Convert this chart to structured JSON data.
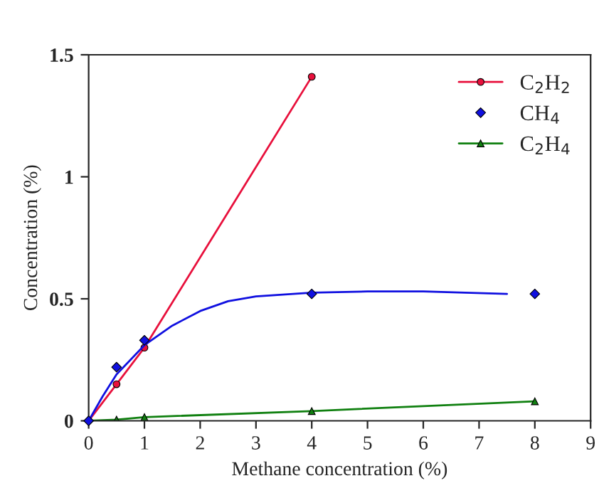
{
  "chart_data": {
    "type": "line",
    "xlabel": "Methane concentration (%)",
    "ylabel": "Concentration (%)",
    "xlim": [
      0,
      9
    ],
    "xticks": [
      0,
      1,
      2,
      3,
      4,
      5,
      6,
      7,
      8,
      9
    ],
    "ylim": [
      0,
      1.5
    ],
    "yticks": [
      0,
      0.5,
      1,
      1.5
    ],
    "grid": false,
    "legend": "top right",
    "series": [
      {
        "name": "C$_{2}$H$_{2}$",
        "type": "line",
        "marker": "circle",
        "color": "#e8103c",
        "x": [
          0,
          0.5,
          1,
          4
        ],
        "values": [
          0,
          0.15,
          0.3,
          1.41
        ]
      },
      {
        "name": "CH$_{4}$",
        "type": "scatter",
        "marker": "diamond",
        "color": "#1010e0",
        "x": [
          0,
          0.5,
          1,
          4,
          8
        ],
        "values": [
          0,
          0.22,
          0.33,
          0.52,
          0.52
        ]
      },
      {
        "name": "C$_{2}$H$_{4}$",
        "type": "line",
        "marker": "triangle",
        "color": "#108010",
        "x": [
          0,
          0.5,
          1,
          4,
          8
        ],
        "values": [
          0,
          0.005,
          0.015,
          0.04,
          0.08
        ]
      },
      {
        "marker": "none",
        "color": "#1010e0",
        "x": [
          0,
          0.25,
          0.5,
          1,
          1.5,
          2,
          2.5,
          3,
          4,
          5,
          6,
          7.5
        ],
        "values": [
          0,
          0.1,
          0.19,
          0.31,
          0.39,
          0.45,
          0.49,
          0.51,
          0.525,
          0.53,
          0.53,
          0.52
        ]
      }
    ]
  }
}
